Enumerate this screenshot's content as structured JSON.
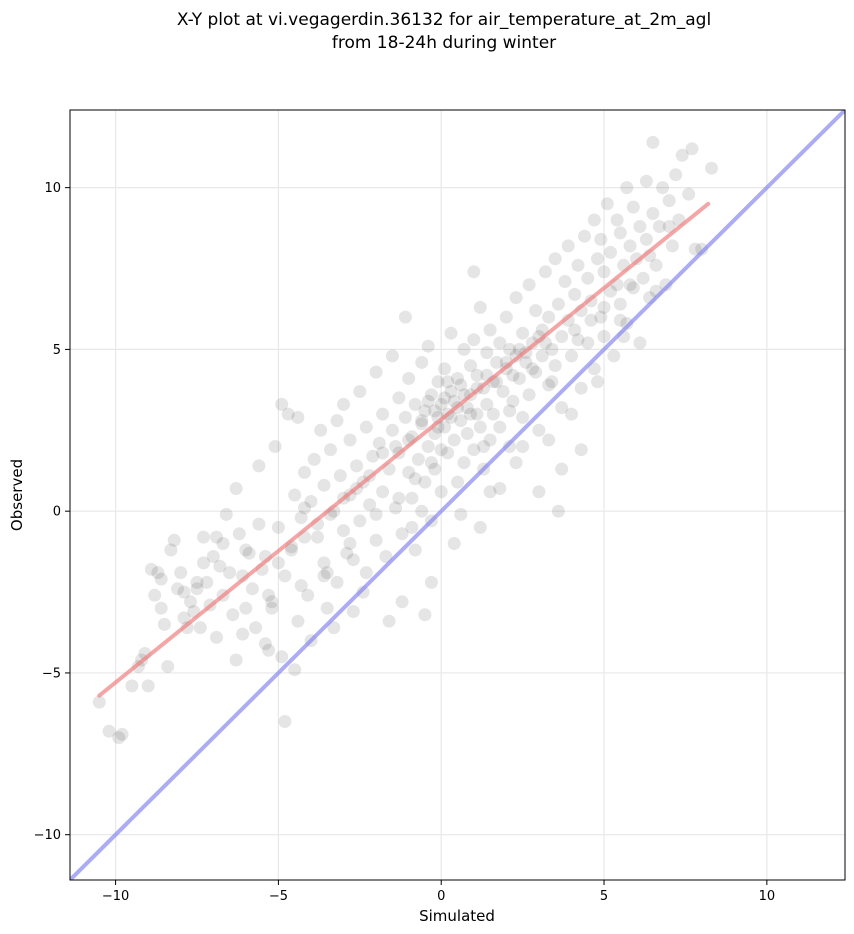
{
  "chart_data": {
    "type": "scatter",
    "title_lines": [
      "X-Y plot at vi.vegagerdin.36132 for air_temperature_at_2m_agl",
      "from 18-24h during winter"
    ],
    "xlabel": "Simulated",
    "ylabel": "Observed",
    "xlim": [
      -11.4,
      12.4
    ],
    "ylim": [
      -11.4,
      12.4
    ],
    "xticks": [
      -10,
      -5,
      0,
      5,
      10
    ],
    "yticks": [
      -10,
      -5,
      0,
      5,
      10
    ],
    "xtick_labels": [
      "−10",
      "−5",
      "0",
      "5",
      "10"
    ],
    "ytick_labels": [
      "−10",
      "−5",
      "0",
      "5",
      "10"
    ],
    "grid": true,
    "point_color": "#000000",
    "point_alpha": 0.1,
    "fit_line": {
      "color": "#f08080",
      "x": [
        -10.5,
        8.2
      ],
      "y": [
        -5.7,
        9.5
      ]
    },
    "identity_line": {
      "color": "#8080f0",
      "x": [
        -11.4,
        12.4
      ],
      "y": [
        -11.4,
        12.4
      ]
    },
    "points": [
      [
        -10.5,
        -5.9
      ],
      [
        -10.2,
        -6.8
      ],
      [
        -9.9,
        -7.0
      ],
      [
        -9.8,
        -6.9
      ],
      [
        -9.5,
        -5.4
      ],
      [
        -9.3,
        -4.8
      ],
      [
        -9.1,
        -4.4
      ],
      [
        -9.0,
        -5.4
      ],
      [
        -8.8,
        -2.6
      ],
      [
        -8.7,
        -1.9
      ],
      [
        -8.6,
        -2.1
      ],
      [
        -8.5,
        -3.5
      ],
      [
        -8.4,
        -4.8
      ],
      [
        -8.3,
        -1.2
      ],
      [
        -8.2,
        -0.9
      ],
      [
        -8.1,
        -2.4
      ],
      [
        -8.0,
        -1.9
      ],
      [
        -7.9,
        -3.3
      ],
      [
        -7.8,
        -3.6
      ],
      [
        -7.7,
        -2.8
      ],
      [
        -7.6,
        -3.1
      ],
      [
        -7.5,
        -2.4
      ],
      [
        -7.4,
        -3.6
      ],
      [
        -7.3,
        -1.6
      ],
      [
        -7.2,
        -2.2
      ],
      [
        -7.1,
        -2.9
      ],
      [
        -7.0,
        -1.4
      ],
      [
        -6.9,
        -0.8
      ],
      [
        -6.9,
        -3.9
      ],
      [
        -6.8,
        -1.7
      ],
      [
        -6.7,
        -2.6
      ],
      [
        -6.6,
        -0.1
      ],
      [
        -6.5,
        -1.9
      ],
      [
        -6.4,
        -3.2
      ],
      [
        -6.3,
        0.7
      ],
      [
        -6.3,
        -4.6
      ],
      [
        -6.2,
        -0.7
      ],
      [
        -6.1,
        -2.0
      ],
      [
        -6.0,
        -3.0
      ],
      [
        -5.9,
        -1.3
      ],
      [
        -5.8,
        -2.4
      ],
      [
        -5.7,
        -3.6
      ],
      [
        -5.6,
        -0.4
      ],
      [
        -5.5,
        -1.8
      ],
      [
        -5.4,
        -4.1
      ],
      [
        -5.3,
        -2.6
      ],
      [
        -5.2,
        -3.0
      ],
      [
        -5.1,
        2.0
      ],
      [
        -5.0,
        -0.5
      ],
      [
        -4.9,
        -4.5
      ],
      [
        -4.9,
        3.3
      ],
      [
        -4.8,
        -2.0
      ],
      [
        -4.7,
        3.0
      ],
      [
        -4.6,
        -1.2
      ],
      [
        -4.5,
        0.5
      ],
      [
        -4.4,
        -3.4
      ],
      [
        -4.4,
        2.9
      ],
      [
        -4.3,
        -0.2
      ],
      [
        -4.2,
        1.2
      ],
      [
        -4.1,
        -2.6
      ],
      [
        -4.0,
        0.3
      ],
      [
        -4.0,
        -4.0
      ],
      [
        -3.9,
        1.6
      ],
      [
        -3.8,
        -0.8
      ],
      [
        -3.7,
        2.5
      ],
      [
        -3.6,
        -1.6
      ],
      [
        -3.6,
        0.8
      ],
      [
        -3.5,
        -3.0
      ],
      [
        -3.4,
        1.9
      ],
      [
        -3.3,
        0.0
      ],
      [
        -3.2,
        -2.2
      ],
      [
        -3.2,
        2.8
      ],
      [
        -3.1,
        1.1
      ],
      [
        -3.0,
        -0.6
      ],
      [
        -3.0,
        3.3
      ],
      [
        -2.9,
        -1.3
      ],
      [
        -2.8,
        0.5
      ],
      [
        -2.8,
        2.2
      ],
      [
        -2.7,
        -3.1
      ],
      [
        -2.6,
        1.4
      ],
      [
        -2.5,
        -0.3
      ],
      [
        -2.5,
        3.7
      ],
      [
        -2.4,
        0.9
      ],
      [
        -2.3,
        -1.9
      ],
      [
        -2.3,
        2.6
      ],
      [
        -2.2,
        0.2
      ],
      [
        -2.1,
        1.7
      ],
      [
        -2.0,
        -0.9
      ],
      [
        -2.0,
        4.3
      ],
      [
        -1.9,
        2.1
      ],
      [
        -1.8,
        0.6
      ],
      [
        -1.8,
        3.0
      ],
      [
        -1.7,
        -1.4
      ],
      [
        -1.6,
        1.3
      ],
      [
        -1.5,
        2.5
      ],
      [
        -1.5,
        4.8
      ],
      [
        -1.4,
        0.1
      ],
      [
        -1.3,
        3.5
      ],
      [
        -1.3,
        1.8
      ],
      [
        -1.2,
        -0.7
      ],
      [
        -1.1,
        2.9
      ],
      [
        -1.0,
        1.2
      ],
      [
        -1.0,
        4.1
      ],
      [
        -0.9,
        0.4
      ],
      [
        -0.9,
        2.3
      ],
      [
        -0.8,
        3.3
      ],
      [
        -0.8,
        -1.2
      ],
      [
        -0.7,
        1.6
      ],
      [
        -0.6,
        2.7
      ],
      [
        -0.6,
        4.6
      ],
      [
        -0.5,
        0.9
      ],
      [
        -0.5,
        3.1
      ],
      [
        -0.4,
        2.0
      ],
      [
        -0.4,
        5.1
      ],
      [
        -0.3,
        -0.3
      ],
      [
        -0.3,
        3.6
      ],
      [
        -0.2,
        2.4
      ],
      [
        -0.2,
        1.3
      ],
      [
        -0.1,
        4.0
      ],
      [
        -0.1,
        2.9
      ],
      [
        0.0,
        3.3
      ],
      [
        0.0,
        0.6
      ],
      [
        0.1,
        2.6
      ],
      [
        0.1,
        4.4
      ],
      [
        0.2,
        3.0
      ],
      [
        0.2,
        1.8
      ],
      [
        0.3,
        3.7
      ],
      [
        0.3,
        5.5
      ],
      [
        0.4,
        2.2
      ],
      [
        0.4,
        3.4
      ],
      [
        0.5,
        0.9
      ],
      [
        0.5,
        4.1
      ],
      [
        0.6,
        2.8
      ],
      [
        0.6,
        3.9
      ],
      [
        0.7,
        1.5
      ],
      [
        0.7,
        5.0
      ],
      [
        0.8,
        3.2
      ],
      [
        0.8,
        2.4
      ],
      [
        0.9,
        4.5
      ],
      [
        0.9,
        3.6
      ],
      [
        1.0,
        1.9
      ],
      [
        1.0,
        5.3
      ],
      [
        1.1,
        3.0
      ],
      [
        1.1,
        4.2
      ],
      [
        1.2,
        2.6
      ],
      [
        1.2,
        6.3
      ],
      [
        1.3,
        3.8
      ],
      [
        1.3,
        1.3
      ],
      [
        1.4,
        4.9
      ],
      [
        1.4,
        3.3
      ],
      [
        1.5,
        2.2
      ],
      [
        1.5,
        5.6
      ],
      [
        1.6,
        4.0
      ],
      [
        1.6,
        3.0
      ],
      [
        1.7,
        4.6
      ],
      [
        1.8,
        2.6
      ],
      [
        1.8,
        5.2
      ],
      [
        1.9,
        3.7
      ],
      [
        2.0,
        6.0
      ],
      [
        2.0,
        4.4
      ],
      [
        2.1,
        2.0
      ],
      [
        2.1,
        5.0
      ],
      [
        2.2,
        3.4
      ],
      [
        2.3,
        4.8
      ],
      [
        2.3,
        6.6
      ],
      [
        2.4,
        4.1
      ],
      [
        2.5,
        2.9
      ],
      [
        2.5,
        5.5
      ],
      [
        2.6,
        4.6
      ],
      [
        2.7,
        7.0
      ],
      [
        2.7,
        3.6
      ],
      [
        2.8,
        5.2
      ],
      [
        2.9,
        4.3
      ],
      [
        2.9,
        6.2
      ],
      [
        3.0,
        2.5
      ],
      [
        3.1,
        5.6
      ],
      [
        3.1,
        4.8
      ],
      [
        3.2,
        7.4
      ],
      [
        3.3,
        3.9
      ],
      [
        3.3,
        6.0
      ],
      [
        3.4,
        5.0
      ],
      [
        3.5,
        7.8
      ],
      [
        3.5,
        4.5
      ],
      [
        3.6,
        6.4
      ],
      [
        3.7,
        5.4
      ],
      [
        3.7,
        3.2
      ],
      [
        3.8,
        7.1
      ],
      [
        3.9,
        5.9
      ],
      [
        3.9,
        8.2
      ],
      [
        4.0,
        4.8
      ],
      [
        4.1,
        6.7
      ],
      [
        4.1,
        5.6
      ],
      [
        4.2,
        7.6
      ],
      [
        4.3,
        3.8
      ],
      [
        4.3,
        6.2
      ],
      [
        4.4,
        8.5
      ],
      [
        4.5,
        5.2
      ],
      [
        4.5,
        7.2
      ],
      [
        4.6,
        6.5
      ],
      [
        4.7,
        9.0
      ],
      [
        4.7,
        4.4
      ],
      [
        4.8,
        7.8
      ],
      [
        4.9,
        6.0
      ],
      [
        4.9,
        8.4
      ],
      [
        5.0,
        5.4
      ],
      [
        5.0,
        7.4
      ],
      [
        5.1,
        9.5
      ],
      [
        5.2,
        6.8
      ],
      [
        5.2,
        8.0
      ],
      [
        5.3,
        4.8
      ],
      [
        5.4,
        7.0
      ],
      [
        5.4,
        9.0
      ],
      [
        5.5,
        6.4
      ],
      [
        5.5,
        8.6
      ],
      [
        5.6,
        7.6
      ],
      [
        5.7,
        10.0
      ],
      [
        5.7,
        5.8
      ],
      [
        5.8,
        8.2
      ],
      [
        5.9,
        6.9
      ],
      [
        5.9,
        9.4
      ],
      [
        6.0,
        7.8
      ],
      [
        6.1,
        5.2
      ],
      [
        6.1,
        8.8
      ],
      [
        6.2,
        7.2
      ],
      [
        6.3,
        10.2
      ],
      [
        6.3,
        8.4
      ],
      [
        6.4,
        6.6
      ],
      [
        6.5,
        9.2
      ],
      [
        6.5,
        11.4
      ],
      [
        6.6,
        7.6
      ],
      [
        6.7,
        8.8
      ],
      [
        6.8,
        10.0
      ],
      [
        6.9,
        7.0
      ],
      [
        7.0,
        9.6
      ],
      [
        7.1,
        8.2
      ],
      [
        7.2,
        10.4
      ],
      [
        7.3,
        9.0
      ],
      [
        7.4,
        11.0
      ],
      [
        7.6,
        9.8
      ],
      [
        7.7,
        11.2
      ],
      [
        7.8,
        8.1
      ],
      [
        8.0,
        8.1
      ],
      [
        8.3,
        10.6
      ],
      [
        5.5,
        5.9
      ],
      [
        4.6,
        5.9
      ],
      [
        4.3,
        1.9
      ],
      [
        2.3,
        1.5
      ],
      [
        1.8,
        0.7
      ],
      [
        1.2,
        -0.5
      ],
      [
        3.6,
        0.0
      ],
      [
        3.0,
        0.6
      ],
      [
        -0.5,
        -3.2
      ],
      [
        -0.3,
        -2.2
      ],
      [
        -4.8,
        -6.5
      ],
      [
        -4.5,
        -4.9
      ],
      [
        -1.1,
        6.0
      ],
      [
        1.0,
        7.4
      ],
      [
        3.7,
        1.3
      ],
      [
        0.4,
        -1.0
      ],
      [
        -1.6,
        -3.4
      ],
      [
        -2.4,
        -2.5
      ],
      [
        -3.3,
        -3.6
      ],
      [
        -5.3,
        -4.3
      ],
      [
        -6.1,
        -3.8
      ],
      [
        -7.5,
        -2.2
      ],
      [
        -8.9,
        -1.8
      ],
      [
        -5.6,
        1.4
      ],
      [
        -4.2,
        0.1
      ],
      [
        -3.6,
        -2.0
      ],
      [
        -2.7,
        -1.5
      ],
      [
        -1.2,
        -2.8
      ],
      [
        -0.6,
        0.0
      ],
      [
        0.6,
        -0.1
      ],
      [
        1.5,
        0.6
      ],
      [
        2.5,
        2.0
      ],
      [
        3.3,
        2.2
      ],
      [
        4.0,
        3.0
      ],
      [
        4.8,
        4.0
      ],
      [
        5.6,
        5.4
      ],
      [
        6.6,
        6.8
      ],
      [
        -0.2,
        3.1
      ],
      [
        0.1,
        3.5
      ],
      [
        0.3,
        2.9
      ],
      [
        0.5,
        3.2
      ],
      [
        -0.1,
        2.6
      ],
      [
        0.2,
        4.0
      ],
      [
        -0.4,
        3.4
      ],
      [
        0.7,
        3.6
      ],
      [
        0.9,
        3.0
      ],
      [
        -0.6,
        2.8
      ],
      [
        1.1,
        3.8
      ],
      [
        1.4,
        4.2
      ],
      [
        1.7,
        4.0
      ],
      [
        2.0,
        4.6
      ],
      [
        2.2,
        4.2
      ],
      [
        2.4,
        5.0
      ],
      [
        2.6,
        4.9
      ],
      [
        2.8,
        4.4
      ],
      [
        3.0,
        5.4
      ],
      [
        3.2,
        5.2
      ],
      [
        -1.0,
        2.2
      ],
      [
        -1.4,
        2.0
      ],
      [
        -1.8,
        1.8
      ],
      [
        -2.2,
        1.1
      ],
      [
        -2.6,
        0.7
      ],
      [
        -3.0,
        0.4
      ],
      [
        -3.4,
        -0.1
      ],
      [
        -3.8,
        -0.4
      ],
      [
        -4.2,
        -0.8
      ],
      [
        -4.6,
        -1.1
      ],
      [
        -5.0,
        -1.6
      ],
      [
        -5.4,
        -1.4
      ],
      [
        -0.3,
        1.5
      ],
      [
        0.0,
        1.9
      ],
      [
        -0.8,
        1.0
      ],
      [
        1.3,
        2.0
      ],
      [
        2.1,
        3.1
      ],
      [
        3.4,
        4.0
      ],
      [
        4.2,
        5.3
      ],
      [
        5.0,
        6.3
      ],
      [
        5.8,
        7.0
      ],
      [
        6.4,
        7.9
      ],
      [
        7.0,
        8.8
      ],
      [
        -2.0,
        -0.1
      ],
      [
        -1.3,
        0.4
      ],
      [
        -0.9,
        -0.5
      ],
      [
        -2.8,
        -1.0
      ],
      [
        -3.5,
        -1.9
      ],
      [
        -4.3,
        -2.3
      ],
      [
        -5.2,
        -2.8
      ],
      [
        -6.0,
        -1.2
      ],
      [
        -6.7,
        -1.0
      ],
      [
        -7.3,
        -0.8
      ],
      [
        -7.9,
        -2.5
      ],
      [
        -8.6,
        -3.0
      ],
      [
        -9.2,
        -4.6
      ]
    ]
  }
}
